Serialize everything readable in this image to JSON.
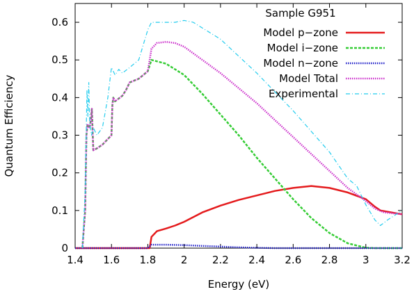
{
  "chart_data": {
    "type": "line",
    "xlabel": "Energy (eV)",
    "ylabel": "Quantum Efficiency",
    "xlim": [
      1.4,
      3.2
    ],
    "ylim": [
      0,
      0.65
    ],
    "x_ticks": [
      1.4,
      1.6,
      1.8,
      2,
      2.2,
      2.4,
      2.6,
      2.8,
      3,
      3.2
    ],
    "x_tick_labels": [
      "1.4",
      "1.6",
      "1.8",
      "2",
      "2.2",
      "2.4",
      "2.6",
      "2.8",
      "3",
      "3.2"
    ],
    "y_ticks": [
      0,
      0.1,
      0.2,
      0.3,
      0.4,
      0.5,
      0.6
    ],
    "y_tick_labels": [
      "0",
      "0.1",
      "0.2",
      "0.3",
      "0.4",
      "0.5",
      "0.6"
    ],
    "grid": false,
    "legend": {
      "title": "Sample G951",
      "position": "top-right"
    },
    "series": [
      {
        "name": "Model p−zone",
        "color": "#e41a1c",
        "style": "solid",
        "points": [
          [
            1.4,
            0
          ],
          [
            1.81,
            0
          ],
          [
            1.82,
            0.03
          ],
          [
            1.85,
            0.045
          ],
          [
            1.9,
            0.052
          ],
          [
            1.95,
            0.06
          ],
          [
            2.0,
            0.07
          ],
          [
            2.1,
            0.095
          ],
          [
            2.2,
            0.113
          ],
          [
            2.3,
            0.128
          ],
          [
            2.4,
            0.14
          ],
          [
            2.5,
            0.152
          ],
          [
            2.6,
            0.16
          ],
          [
            2.7,
            0.165
          ],
          [
            2.8,
            0.16
          ],
          [
            2.9,
            0.148
          ],
          [
            3.0,
            0.13
          ],
          [
            3.05,
            0.11
          ],
          [
            3.08,
            0.1
          ],
          [
            3.2,
            0.09
          ]
        ]
      },
      {
        "name": "Model i−zone",
        "color": "#33cc33",
        "style": "dashed",
        "points": [
          [
            1.44,
            0
          ],
          [
            1.455,
            0.1
          ],
          [
            1.462,
            0.3
          ],
          [
            1.468,
            0.33
          ],
          [
            1.474,
            0.32
          ],
          [
            1.48,
            0.32
          ],
          [
            1.486,
            0.34
          ],
          [
            1.492,
            0.37
          ],
          [
            1.5,
            0.26
          ],
          [
            1.52,
            0.265
          ],
          [
            1.55,
            0.275
          ],
          [
            1.58,
            0.29
          ],
          [
            1.6,
            0.3
          ],
          [
            1.605,
            0.38
          ],
          [
            1.61,
            0.4
          ],
          [
            1.62,
            0.39
          ],
          [
            1.66,
            0.405
          ],
          [
            1.68,
            0.42
          ],
          [
            1.7,
            0.44
          ],
          [
            1.75,
            0.45
          ],
          [
            1.8,
            0.47
          ],
          [
            1.82,
            0.5
          ],
          [
            1.9,
            0.49
          ],
          [
            2.0,
            0.46
          ],
          [
            2.1,
            0.41
          ],
          [
            2.2,
            0.355
          ],
          [
            2.3,
            0.3
          ],
          [
            2.4,
            0.24
          ],
          [
            2.5,
            0.185
          ],
          [
            2.6,
            0.13
          ],
          [
            2.7,
            0.08
          ],
          [
            2.8,
            0.04
          ],
          [
            2.9,
            0.013
          ],
          [
            3.0,
            0.001
          ],
          [
            3.05,
            0
          ],
          [
            3.2,
            0
          ]
        ]
      },
      {
        "name": "Model n−zone",
        "color": "#1f1fc8",
        "style": "dotted",
        "points": [
          [
            1.4,
            0
          ],
          [
            1.8,
            0
          ],
          [
            1.82,
            0.009
          ],
          [
            1.9,
            0.009
          ],
          [
            2.0,
            0.008
          ],
          [
            2.1,
            0.006
          ],
          [
            2.2,
            0.004
          ],
          [
            2.3,
            0.002
          ],
          [
            2.4,
            0.001
          ],
          [
            2.5,
            0
          ],
          [
            3.2,
            0
          ]
        ]
      },
      {
        "name": "Model Total",
        "color": "#cc33cc",
        "style": "dotted",
        "points": [
          [
            1.44,
            0
          ],
          [
            1.455,
            0.1
          ],
          [
            1.462,
            0.3
          ],
          [
            1.468,
            0.33
          ],
          [
            1.474,
            0.32
          ],
          [
            1.48,
            0.32
          ],
          [
            1.486,
            0.34
          ],
          [
            1.492,
            0.37
          ],
          [
            1.5,
            0.26
          ],
          [
            1.52,
            0.265
          ],
          [
            1.55,
            0.275
          ],
          [
            1.58,
            0.29
          ],
          [
            1.6,
            0.3
          ],
          [
            1.605,
            0.38
          ],
          [
            1.61,
            0.4
          ],
          [
            1.62,
            0.39
          ],
          [
            1.66,
            0.405
          ],
          [
            1.68,
            0.42
          ],
          [
            1.7,
            0.44
          ],
          [
            1.75,
            0.45
          ],
          [
            1.8,
            0.47
          ],
          [
            1.82,
            0.53
          ],
          [
            1.85,
            0.545
          ],
          [
            1.9,
            0.548
          ],
          [
            1.95,
            0.545
          ],
          [
            2.0,
            0.535
          ],
          [
            2.1,
            0.5
          ],
          [
            2.2,
            0.465
          ],
          [
            2.3,
            0.425
          ],
          [
            2.4,
            0.385
          ],
          [
            2.5,
            0.34
          ],
          [
            2.6,
            0.295
          ],
          [
            2.7,
            0.25
          ],
          [
            2.8,
            0.205
          ],
          [
            2.9,
            0.16
          ],
          [
            3.0,
            0.125
          ],
          [
            3.05,
            0.105
          ],
          [
            3.1,
            0.095
          ],
          [
            3.2,
            0.09
          ]
        ]
      },
      {
        "name": "Experimental",
        "color": "#22ccee",
        "style": "dashdot",
        "points": [
          [
            1.44,
            0
          ],
          [
            1.455,
            0.15
          ],
          [
            1.465,
            0.42
          ],
          [
            1.47,
            0.35
          ],
          [
            1.475,
            0.44
          ],
          [
            1.48,
            0.33
          ],
          [
            1.49,
            0.3
          ],
          [
            1.5,
            0.32
          ],
          [
            1.52,
            0.3
          ],
          [
            1.55,
            0.32
          ],
          [
            1.58,
            0.4
          ],
          [
            1.6,
            0.48
          ],
          [
            1.62,
            0.46
          ],
          [
            1.64,
            0.475
          ],
          [
            1.66,
            0.465
          ],
          [
            1.7,
            0.48
          ],
          [
            1.75,
            0.5
          ],
          [
            1.8,
            0.58
          ],
          [
            1.82,
            0.6
          ],
          [
            1.85,
            0.6
          ],
          [
            1.9,
            0.6
          ],
          [
            1.95,
            0.6
          ],
          [
            2.0,
            0.605
          ],
          [
            2.05,
            0.6
          ],
          [
            2.1,
            0.585
          ],
          [
            2.2,
            0.555
          ],
          [
            2.3,
            0.51
          ],
          [
            2.4,
            0.465
          ],
          [
            2.5,
            0.415
          ],
          [
            2.6,
            0.365
          ],
          [
            2.7,
            0.31
          ],
          [
            2.8,
            0.255
          ],
          [
            2.9,
            0.185
          ],
          [
            2.95,
            0.165
          ],
          [
            3.0,
            0.115
          ],
          [
            3.05,
            0.075
          ],
          [
            3.08,
            0.06
          ],
          [
            3.12,
            0.075
          ],
          [
            3.2,
            0.1
          ]
        ]
      }
    ]
  }
}
